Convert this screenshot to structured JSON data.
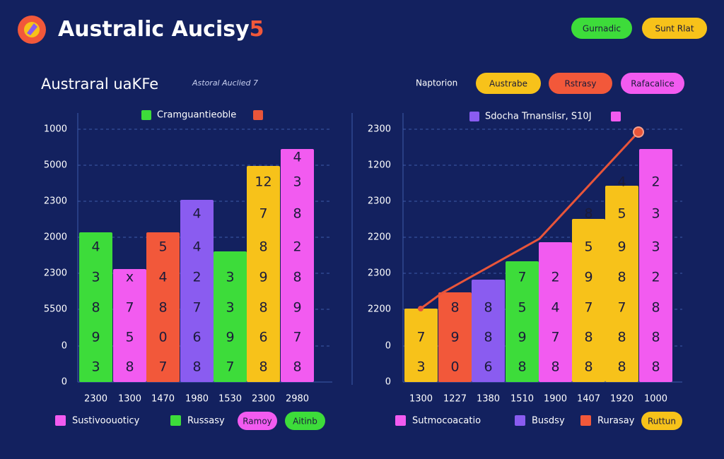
{
  "header": {
    "title": "Australic Aucisy",
    "title_suffix": "5",
    "buttons": [
      {
        "text": "Gurnadic",
        "color": "#3ddc3a"
      },
      {
        "text": "Sunt Rlat",
        "color": "#f7c21a"
      }
    ]
  },
  "panels": [
    {
      "title": "Austraral uaKFe",
      "subtitle": "Astoral Auclied 7",
      "legend": [
        {
          "text": "Cramguantieoble",
          "color": "#3ddc3a"
        },
        {
          "text": "",
          "color": "#e8553a"
        }
      ],
      "y_labels": [
        "1000",
        "5000",
        "2300",
        "2000",
        "2300",
        "5500",
        "0",
        "0"
      ],
      "bars": [
        {
          "color": "#3ddc3a",
          "labels": [
            "3",
            "9",
            "8",
            "3",
            "4"
          ],
          "x_label": "2300"
        },
        {
          "color": "#f25bf0",
          "labels": [
            "8",
            "5",
            "7",
            "x"
          ],
          "x_label": "1300"
        },
        {
          "color": "#f2583a",
          "labels": [
            "7",
            "0",
            "8",
            "4",
            "5"
          ],
          "x_label": "1470"
        },
        {
          "color": "#8a5cf0",
          "labels": [
            "8",
            "6",
            "7",
            "2",
            "4",
            "4"
          ],
          "x_label": "1980"
        },
        {
          "color": "#3ddc3a",
          "labels": [
            "7",
            "9",
            "3",
            "3"
          ],
          "x_label": "1530"
        },
        {
          "color": "#f7c21a",
          "labels": [
            "8",
            "6",
            "8",
            "9",
            "8",
            "7",
            "12"
          ],
          "x_label": "2300"
        },
        {
          "color": "#f25bf0",
          "labels": [
            "8",
            "7",
            "9",
            "8",
            "2",
            "8",
            "3",
            "4"
          ],
          "x_label": "2980"
        }
      ],
      "bottom_legend": [
        {
          "kind": "swatch",
          "color": "#f25bf0",
          "text": "Sustivoouoticy"
        },
        {
          "kind": "swatch",
          "color": "#3ddc3a",
          "text": "Russasy"
        },
        {
          "kind": "button",
          "color": "#f25bf0",
          "text": "Ramoy"
        },
        {
          "kind": "button",
          "color": "#3ddc3a",
          "text": "Aitinb"
        }
      ]
    },
    {
      "tabs_label": "Naptorion",
      "tabs": [
        {
          "text": "Austrabe",
          "color": "#f7c21a"
        },
        {
          "text": "Rstrasy",
          "color": "#f2583a"
        },
        {
          "text": "Rafacalice",
          "color": "#f25bf0"
        }
      ],
      "legend": [
        {
          "text": "Sdocha Trnanslisr, S10J",
          "color": "#8a5cf0"
        },
        {
          "text": "",
          "color": "#f25bf0"
        }
      ],
      "y_labels": [
        "2300",
        "1200",
        "2300",
        "2200",
        "2300",
        "2200",
        "0",
        "0"
      ],
      "bars": [
        {
          "color": "#f7c21a",
          "labels": [
            "3",
            "7"
          ],
          "x_label": "1300"
        },
        {
          "color": "#f2583a",
          "labels": [
            "0",
            "9",
            "8"
          ],
          "x_label": "1227"
        },
        {
          "color": "#8a5cf0",
          "labels": [
            "6",
            "8",
            "8"
          ],
          "x_label": "1380"
        },
        {
          "color": "#3ddc3a",
          "labels": [
            "8",
            "9",
            "5",
            "7"
          ],
          "x_label": "1510"
        },
        {
          "color": "#f25bf0",
          "labels": [
            "8",
            "7",
            "4",
            "2"
          ],
          "x_label": "1900"
        },
        {
          "color": "#f7c21a",
          "labels": [
            "8",
            "8",
            "7",
            "9",
            "5",
            "8"
          ],
          "x_label": "1407"
        },
        {
          "color": "#f7c21a",
          "labels": [
            "8",
            "8",
            "7",
            "8",
            "9",
            "5",
            "4"
          ],
          "x_label": "1920"
        },
        {
          "color": "#f25bf0",
          "labels": [
            "8",
            "8",
            "8",
            "2",
            "3",
            "3",
            "2"
          ],
          "x_label": "1000"
        }
      ],
      "bottom_legend": [
        {
          "kind": "swatch",
          "color": "#f25bf0",
          "text": "Sutmocoacatio"
        },
        {
          "kind": "swatch",
          "color": "#8a5cf0",
          "text": "Busdsy"
        },
        {
          "kind": "swatch",
          "color": "#f2583a",
          "text": "Rurasay"
        },
        {
          "kind": "button",
          "color": "#f7c21a",
          "text": "Ruttun"
        }
      ]
    }
  ]
}
